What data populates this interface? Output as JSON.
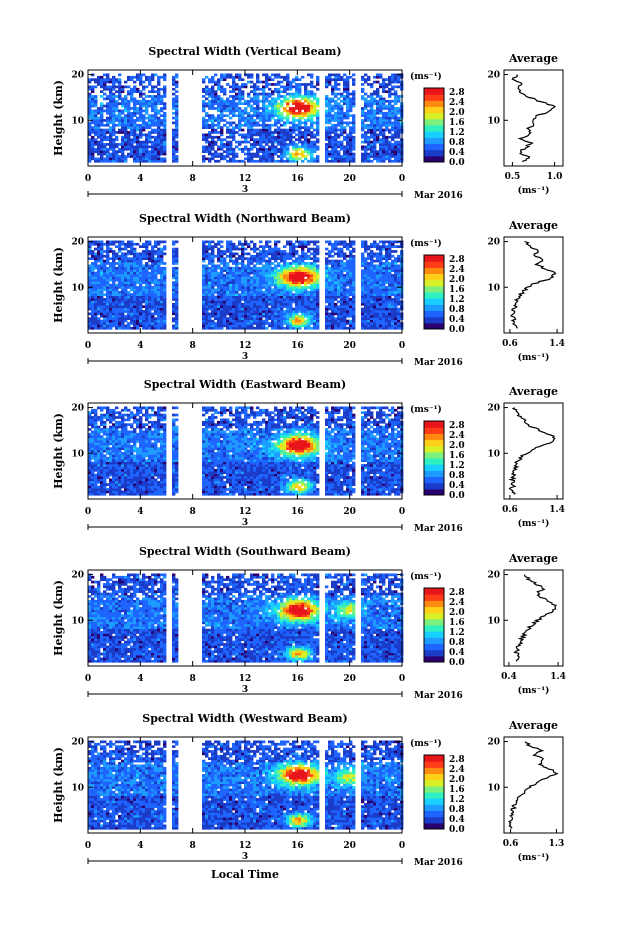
{
  "figure": {
    "x_ticks": [
      "0",
      "4",
      "8",
      "12",
      "16",
      "20",
      "0"
    ],
    "day_label": "3",
    "month_year": "Mar 2016",
    "xlabel": "Local Time",
    "ylabel": "Height (km)",
    "y_ticks": [
      "20",
      "10"
    ],
    "colorbar_unit": "(ms⁻¹)",
    "colorbar_ticks": [
      "2.8",
      "2.4",
      "2.0",
      "1.6",
      "1.2",
      "0.8",
      "0.4",
      "0.0"
    ],
    "avg_title": "Average",
    "avg_unit": "(ms⁻¹)",
    "colors": [
      "#2a0070",
      "#1a3cc8",
      "#1e64ff",
      "#1e9bff",
      "#18d0ff",
      "#2ef0c0",
      "#7cf07c",
      "#d8f028",
      "#ffd018",
      "#ff8a10",
      "#ff3c18",
      "#e8141c"
    ]
  },
  "chart_data": [
    {
      "type": "heatmap",
      "title": "Spectral Width (Vertical Beam)",
      "ylim": [
        0,
        21
      ],
      "xlim": [
        0,
        24
      ],
      "colorbar_range": [
        0,
        2.8
      ],
      "peak_hour": 16,
      "peak_height": 12.5,
      "gaps_hours": [
        [
          5.8,
          6.2
        ],
        [
          6.8,
          8.5
        ],
        [
          17.6,
          17.9
        ],
        [
          20.4,
          20.7
        ]
      ],
      "avg_xlabels": [
        "0.5",
        "1.0"
      ],
      "avg_xlim": [
        0.4,
        1.1
      ],
      "avg_profile": {
        "height": [
          1,
          2,
          3,
          4,
          5,
          6,
          7,
          8,
          9,
          10,
          11,
          12,
          13,
          14,
          15,
          16,
          17,
          18,
          19,
          20
        ],
        "value": [
          0.62,
          0.7,
          0.58,
          0.66,
          0.72,
          0.6,
          0.7,
          0.68,
          0.74,
          0.72,
          0.8,
          0.95,
          1.0,
          0.85,
          0.7,
          0.62,
          0.55,
          0.6,
          0.52,
          0.55
        ]
      }
    },
    {
      "type": "heatmap",
      "title": "Spectral Width (Northward Beam)",
      "ylim": [
        0,
        21
      ],
      "xlim": [
        0,
        24
      ],
      "colorbar_range": [
        0,
        2.8
      ],
      "peak_hour": 16,
      "peak_height": 12.0,
      "gaps_hours": [
        [
          5.8,
          6.2
        ],
        [
          6.8,
          8.5
        ],
        [
          17.6,
          17.9
        ],
        [
          20.4,
          20.7
        ]
      ],
      "avg_xlabels": [
        "0.6",
        "1.4"
      ],
      "avg_xlim": [
        0.5,
        1.5
      ],
      "avg_profile": {
        "height": [
          1,
          2,
          3,
          4,
          5,
          6,
          7,
          8,
          9,
          10,
          11,
          12,
          13,
          14,
          15,
          16,
          17,
          18,
          19,
          20
        ],
        "value": [
          0.7,
          0.65,
          0.68,
          0.62,
          0.66,
          0.7,
          0.72,
          0.76,
          0.82,
          0.9,
          1.05,
          1.3,
          1.38,
          1.2,
          1.05,
          1.15,
          1.0,
          1.1,
          0.95,
          0.85
        ]
      }
    },
    {
      "type": "heatmap",
      "title": "Spectral Width (Eastward Beam)",
      "ylim": [
        0,
        21
      ],
      "xlim": [
        0,
        24
      ],
      "colorbar_range": [
        0,
        2.8
      ],
      "peak_hour": 16,
      "peak_height": 11.5,
      "gaps_hours": [
        [
          5.8,
          6.2
        ],
        [
          6.8,
          8.5
        ],
        [
          17.6,
          17.9
        ],
        [
          20.4,
          20.7
        ]
      ],
      "avg_xlabels": [
        "0.6",
        "1.4"
      ],
      "avg_xlim": [
        0.5,
        1.5
      ],
      "avg_profile": {
        "height": [
          1,
          2,
          3,
          4,
          5,
          6,
          7,
          8,
          9,
          10,
          11,
          12,
          13,
          14,
          15,
          16,
          17,
          18,
          19,
          20
        ],
        "value": [
          0.68,
          0.62,
          0.66,
          0.64,
          0.66,
          0.68,
          0.7,
          0.72,
          0.78,
          0.88,
          1.0,
          1.22,
          1.36,
          1.3,
          1.1,
          0.95,
          0.85,
          0.78,
          0.7,
          0.68
        ]
      }
    },
    {
      "type": "heatmap",
      "title": "Spectral Width (Southward Beam)",
      "ylim": [
        0,
        21
      ],
      "xlim": [
        0,
        24
      ],
      "colorbar_range": [
        0,
        2.8
      ],
      "peak_hour": 16,
      "peak_height": 12.0,
      "gaps_hours": [
        [
          5.8,
          6.2
        ],
        [
          6.8,
          8.5
        ],
        [
          17.6,
          17.9
        ],
        [
          20.4,
          20.7
        ]
      ],
      "avg_xlabels": [
        "0.4",
        "1.4"
      ],
      "avg_xlim": [
        0.3,
        1.5
      ],
      "avg_profile": {
        "height": [
          1,
          2,
          3,
          4,
          5,
          6,
          7,
          8,
          9,
          10,
          11,
          12,
          13,
          14,
          15,
          16,
          17,
          18,
          19,
          20
        ],
        "value": [
          0.52,
          0.6,
          0.55,
          0.58,
          0.62,
          0.66,
          0.72,
          0.78,
          0.86,
          0.98,
          1.12,
          1.3,
          1.38,
          1.25,
          1.05,
          1.0,
          1.1,
          0.95,
          0.8,
          0.72
        ]
      }
    },
    {
      "type": "heatmap",
      "title": "Spectral Width (Westward Beam)",
      "ylim": [
        0,
        21
      ],
      "xlim": [
        0,
        24
      ],
      "colorbar_range": [
        0,
        2.8
      ],
      "peak_hour": 16,
      "peak_height": 12.5,
      "gaps_hours": [
        [
          5.8,
          6.2
        ],
        [
          6.8,
          8.5
        ],
        [
          17.6,
          17.9
        ],
        [
          20.4,
          20.7
        ]
      ],
      "avg_xlabels": [
        "0.6",
        "1.3"
      ],
      "avg_xlim": [
        0.5,
        1.4
      ],
      "avg_profile": {
        "height": [
          1,
          2,
          3,
          4,
          5,
          6,
          7,
          8,
          9,
          10,
          11,
          12,
          13,
          14,
          15,
          16,
          17,
          18,
          19,
          20
        ],
        "value": [
          0.62,
          0.58,
          0.6,
          0.64,
          0.62,
          0.66,
          0.7,
          0.74,
          0.8,
          0.9,
          1.0,
          1.15,
          1.28,
          1.2,
          1.05,
          1.12,
          0.98,
          1.08,
          0.9,
          0.82
        ]
      }
    }
  ]
}
